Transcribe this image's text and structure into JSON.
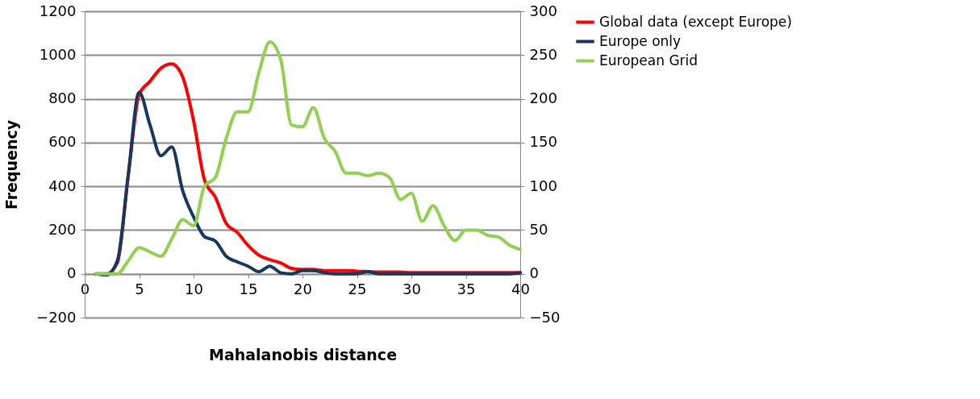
{
  "chart_data": {
    "type": "line",
    "xlabel": "Mahalanobis distance",
    "ylabel": "Frequency",
    "x": [
      1,
      2,
      3,
      4,
      5,
      6,
      7,
      8,
      9,
      10,
      11,
      12,
      13,
      14,
      15,
      16,
      17,
      18,
      19,
      20,
      21,
      22,
      23,
      24,
      25,
      26,
      27,
      28,
      29,
      30,
      31,
      32,
      33,
      34,
      35,
      36,
      37,
      38,
      39,
      40
    ],
    "xlim": [
      0,
      40
    ],
    "xticks": [
      0,
      5,
      10,
      15,
      20,
      25,
      30,
      35,
      40
    ],
    "ylim": [
      -200,
      1200
    ],
    "yticks": [
      -200,
      0,
      200,
      400,
      600,
      800,
      1000,
      1200
    ],
    "y2lim": [
      -50,
      300
    ],
    "y2ticks": [
      -50,
      0,
      50,
      100,
      150,
      200,
      250,
      300
    ],
    "grid": "y",
    "legend": "right",
    "marker": "none",
    "line_style": "solid",
    "series": [
      {
        "name": "Global data (except Europe)",
        "color": "#ff0000",
        "values": [
          0,
          0,
          50,
          450,
          820,
          880,
          940,
          960,
          900,
          700,
          430,
          350,
          230,
          190,
          130,
          85,
          65,
          50,
          25,
          20,
          20,
          15,
          15,
          15,
          12,
          10,
          8,
          8,
          8,
          5,
          5,
          5,
          5,
          5,
          5,
          5,
          5,
          5,
          5,
          5
        ]
      },
      {
        "name": "Europe only",
        "color": "#17375e",
        "values": [
          0,
          -5,
          60,
          450,
          830,
          680,
          540,
          580,
          380,
          260,
          170,
          150,
          80,
          55,
          35,
          10,
          35,
          5,
          0,
          15,
          15,
          5,
          0,
          0,
          0,
          10,
          0,
          0,
          0,
          0,
          0,
          0,
          0,
          0,
          0,
          0,
          0,
          0,
          0,
          5
        ]
      },
      {
        "name": "European Grid",
        "color": "#92d050",
        "axis": "y2",
        "values": [
          0,
          0,
          0,
          15,
          30,
          25,
          20,
          40,
          62,
          55,
          100,
          110,
          155,
          185,
          185,
          230,
          265,
          245,
          170,
          168,
          190,
          155,
          140,
          115,
          115,
          112,
          115,
          110,
          85,
          92,
          60,
          78,
          55,
          38,
          50,
          50,
          44,
          42,
          33,
          28
        ]
      }
    ]
  }
}
